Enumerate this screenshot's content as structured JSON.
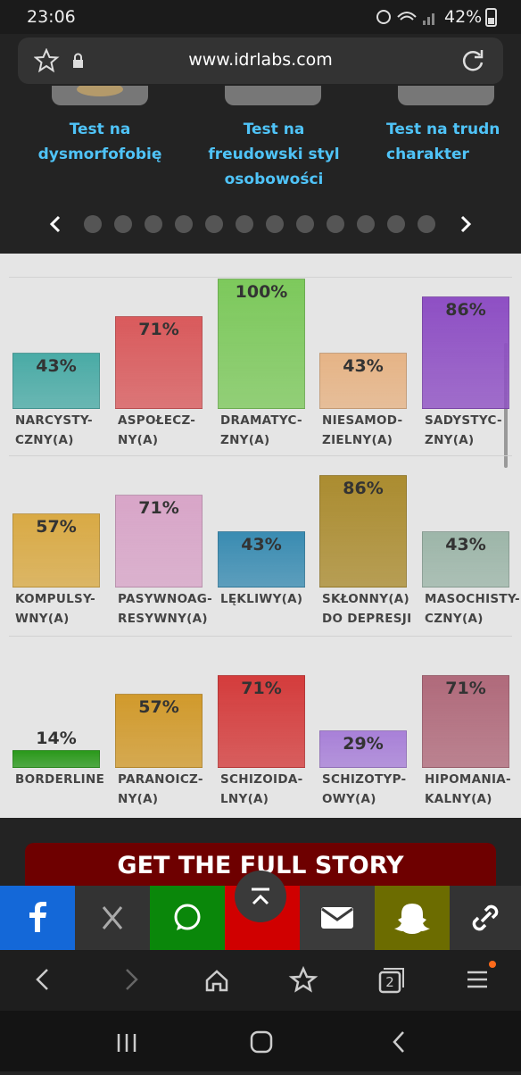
{
  "status_bar": {
    "time": "23:06",
    "battery": "42%"
  },
  "browser": {
    "url": "www.idrlabs.com",
    "tab_count": "2"
  },
  "carousel": {
    "items": [
      "Test na\ndysmorfofobię",
      "Test na\nfreudowski styl\nosobowości",
      "Test na trudn\ncharakter"
    ]
  },
  "chart_data": {
    "type": "bar",
    "categories": [
      "NARCYSTY-\nCZNY(A)",
      "ASPOŁECZ-\nNY(A)",
      "DRAMATYC-\nZNY(A)",
      "NIESAMOD-\nZIELNY(A)",
      "SADYSTYC-\nZNY(A)",
      "KOMPULSY-\nWNY(A)",
      "PASYWNOAG-\nRESYWNY(A)",
      "LĘKLIWY(A)",
      "SKŁONNY(A)\nDO DEPRESJI",
      "MASOCHISTY-\nCZNY(A)",
      "BORDERLINE",
      "PARANOICZ-\nNY(A)",
      "SCHIZOIDA-\nLNY(A)",
      "SCHIZOTYP-\nOWY(A)",
      "HIPOMANIA-\nKALNY(A)"
    ],
    "values": [
      43,
      71,
      100,
      43,
      86,
      57,
      71,
      43,
      86,
      43,
      14,
      57,
      71,
      29,
      71
    ],
    "value_labels": [
      "43%",
      "71%",
      "100%",
      "43%",
      "86%",
      "57%",
      "71%",
      "43%",
      "86%",
      "43%",
      "14%",
      "57%",
      "71%",
      "29%",
      "71%"
    ],
    "colors": [
      "#4aaba6",
      "#d95a5c",
      "#7dc95c",
      "#e6b486",
      "#8e4fc4",
      "#d9aa45",
      "#d8a5c8",
      "#3a8cb2",
      "#ab8c30",
      "#9db6a9",
      "#2a991b",
      "#d19a2c",
      "#d43c3c",
      "#a880d8",
      "#b06a7b"
    ],
    "ylim": [
      0,
      100
    ]
  },
  "cta": {
    "label": "GET THE FULL STORY"
  }
}
